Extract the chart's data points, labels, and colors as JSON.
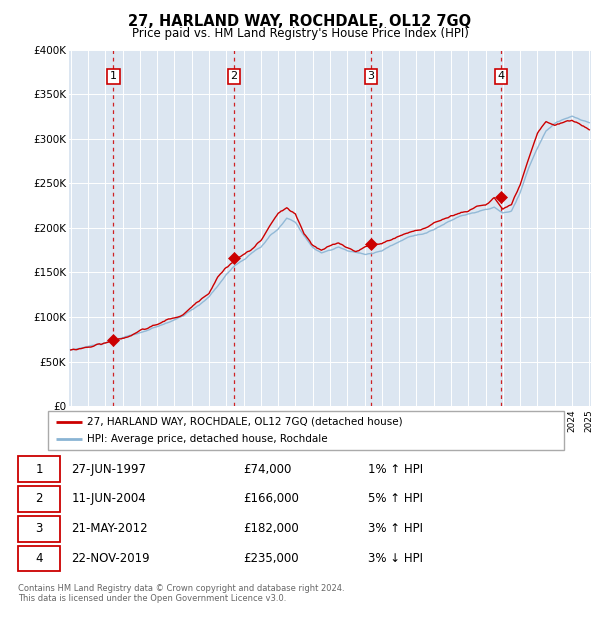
{
  "title": "27, HARLAND WAY, ROCHDALE, OL12 7GQ",
  "subtitle": "Price paid vs. HM Land Registry's House Price Index (HPI)",
  "plot_bg_color": "#dce6f1",
  "hpi_line_color": "#8ab4d4",
  "price_line_color": "#cc0000",
  "marker_color": "#cc0000",
  "dashed_line_color": "#cc0000",
  "ylim": [
    0,
    400000
  ],
  "yticks": [
    0,
    50000,
    100000,
    150000,
    200000,
    250000,
    300000,
    350000,
    400000
  ],
  "ytick_labels": [
    "£0",
    "£50K",
    "£100K",
    "£150K",
    "£200K",
    "£250K",
    "£300K",
    "£350K",
    "£400K"
  ],
  "xstart": 1995,
  "xend": 2025,
  "sales": [
    {
      "label": "1",
      "date": 1997.47,
      "price": 74000
    },
    {
      "label": "2",
      "date": 2004.44,
      "price": 166000
    },
    {
      "label": "3",
      "date": 2012.38,
      "price": 182000
    },
    {
      "label": "4",
      "date": 2019.9,
      "price": 235000
    }
  ],
  "legend_entries": [
    {
      "label": "27, HARLAND WAY, ROCHDALE, OL12 7GQ (detached house)",
      "color": "#cc0000"
    },
    {
      "label": "HPI: Average price, detached house, Rochdale",
      "color": "#8ab4d4"
    }
  ],
  "table_rows": [
    {
      "num": "1",
      "date": "27-JUN-1997",
      "price": "£74,000",
      "change": "1% ↑ HPI"
    },
    {
      "num": "2",
      "date": "11-JUN-2004",
      "price": "£166,000",
      "change": "5% ↑ HPI"
    },
    {
      "num": "3",
      "date": "21-MAY-2012",
      "price": "£182,000",
      "change": "3% ↑ HPI"
    },
    {
      "num": "4",
      "date": "22-NOV-2019",
      "price": "£235,000",
      "change": "3% ↓ HPI"
    }
  ],
  "footer": "Contains HM Land Registry data © Crown copyright and database right 2024.\nThis data is licensed under the Open Government Licence v3.0.",
  "hpi_anchors_x": [
    1995.0,
    1995.5,
    1996.0,
    1996.5,
    1997.0,
    1997.5,
    1998.0,
    1998.5,
    1999.0,
    1999.5,
    2000.0,
    2000.5,
    2001.0,
    2001.5,
    2002.0,
    2002.5,
    2003.0,
    2003.5,
    2004.0,
    2004.5,
    2005.0,
    2005.5,
    2006.0,
    2006.5,
    2007.0,
    2007.5,
    2008.0,
    2008.5,
    2009.0,
    2009.5,
    2010.0,
    2010.5,
    2011.0,
    2011.5,
    2012.0,
    2012.5,
    2013.0,
    2013.5,
    2014.0,
    2014.5,
    2015.0,
    2015.5,
    2016.0,
    2016.5,
    2017.0,
    2017.5,
    2018.0,
    2018.5,
    2019.0,
    2019.5,
    2020.0,
    2020.5,
    2021.0,
    2021.5,
    2022.0,
    2022.5,
    2023.0,
    2023.5,
    2024.0,
    2024.5,
    2025.0
  ],
  "hpi_anchors_y": [
    63000,
    65000,
    67000,
    69000,
    71000,
    73000,
    76000,
    79000,
    82000,
    85000,
    88000,
    92000,
    96000,
    100000,
    107000,
    114000,
    122000,
    135000,
    148000,
    158000,
    165000,
    172000,
    178000,
    190000,
    198000,
    210000,
    205000,
    190000,
    178000,
    172000,
    175000,
    178000,
    174000,
    172000,
    170000,
    172000,
    175000,
    180000,
    185000,
    190000,
    193000,
    196000,
    200000,
    205000,
    210000,
    215000,
    218000,
    220000,
    222000,
    225000,
    218000,
    220000,
    240000,
    268000,
    290000,
    310000,
    318000,
    322000,
    325000,
    322000,
    318000
  ],
  "price_anchors_x": [
    1995.0,
    1995.5,
    1996.0,
    1996.5,
    1997.0,
    1997.5,
    1998.0,
    1998.5,
    1999.0,
    1999.5,
    2000.0,
    2000.5,
    2001.0,
    2001.5,
    2002.0,
    2002.5,
    2003.0,
    2003.5,
    2004.0,
    2004.5,
    2005.0,
    2005.5,
    2006.0,
    2006.5,
    2007.0,
    2007.5,
    2008.0,
    2008.5,
    2009.0,
    2009.5,
    2010.0,
    2010.5,
    2011.0,
    2011.5,
    2012.0,
    2012.5,
    2013.0,
    2013.5,
    2014.0,
    2014.5,
    2015.0,
    2015.5,
    2016.0,
    2016.5,
    2017.0,
    2017.5,
    2018.0,
    2018.5,
    2019.0,
    2019.5,
    2020.0,
    2020.5,
    2021.0,
    2021.5,
    2022.0,
    2022.5,
    2023.0,
    2023.5,
    2024.0,
    2024.5,
    2025.0
  ],
  "price_anchors_y": [
    63000,
    65000,
    67000,
    70000,
    72000,
    75000,
    78000,
    82000,
    86000,
    89000,
    93000,
    97000,
    100000,
    104000,
    112000,
    120000,
    130000,
    148000,
    160000,
    168000,
    174000,
    180000,
    190000,
    205000,
    220000,
    225000,
    218000,
    195000,
    182000,
    176000,
    180000,
    183000,
    178000,
    175000,
    180000,
    182000,
    184000,
    188000,
    193000,
    197000,
    200000,
    203000,
    207000,
    212000,
    217000,
    220000,
    222000,
    228000,
    230000,
    238000,
    225000,
    228000,
    250000,
    278000,
    305000,
    318000,
    315000,
    318000,
    320000,
    315000,
    310000
  ]
}
